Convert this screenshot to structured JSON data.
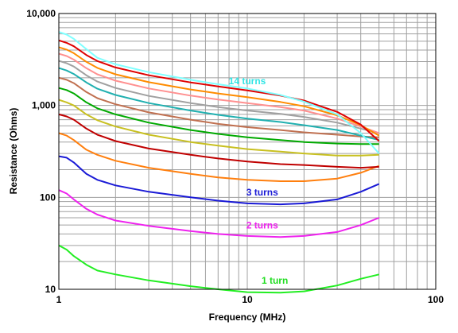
{
  "chart_data": {
    "type": "line",
    "title": "",
    "xlabel": "Frequency (MHz)",
    "ylabel": "Resistance (Ohms)",
    "x_scale": "log",
    "y_scale": "log",
    "xlim": [
      1,
      100
    ],
    "ylim": [
      10,
      10000
    ],
    "x_ticks": [
      "1",
      "10",
      "100"
    ],
    "y_ticks": [
      "10",
      "100",
      "1,000",
      "10,000"
    ],
    "grid": true,
    "legend": "none",
    "annotations": [
      {
        "text": "14 turns",
        "color": "#33e5e5",
        "x": 10,
        "y": 1700
      },
      {
        "text": "3 turns",
        "color": "#1a1ad6",
        "x": 12,
        "y": 105
      },
      {
        "text": "2 turns",
        "color": "#ee22ee",
        "x": 12,
        "y": 46
      },
      {
        "text": "1 turn",
        "color": "#22dd22",
        "x": 14,
        "y": 11.5
      }
    ],
    "x": [
      1,
      1.1,
      1.2,
      1.4,
      1.6,
      2,
      3,
      5,
      7,
      10,
      15,
      20,
      30,
      40,
      50
    ],
    "series": [
      {
        "color": "#22ee22",
        "values": [
          30,
          27,
          23,
          18.5,
          16,
          14.5,
          12.5,
          10.8,
          10,
          9.3,
          9.2,
          9.5,
          11,
          13,
          14.5
        ]
      },
      {
        "color": "#ee22ee",
        "values": [
          120,
          110,
          95,
          75,
          65,
          56,
          49,
          43,
          40,
          38,
          37,
          38,
          42,
          50,
          60
        ]
      },
      {
        "color": "#1a1ad6",
        "values": [
          280,
          270,
          240,
          180,
          155,
          135,
          115,
          100,
          92,
          86,
          84,
          86,
          95,
          115,
          140
        ]
      },
      {
        "color": "#ff7f0e",
        "values": [
          500,
          470,
          420,
          330,
          290,
          250,
          210,
          180,
          165,
          155,
          150,
          150,
          160,
          185,
          220
        ]
      },
      {
        "color": "#c00000",
        "values": [
          800,
          760,
          700,
          560,
          480,
          410,
          340,
          290,
          265,
          245,
          230,
          225,
          215,
          210,
          215
        ]
      },
      {
        "color": "#c8c020",
        "values": [
          1150,
          1080,
          1000,
          800,
          690,
          590,
          480,
          400,
          365,
          335,
          315,
          300,
          285,
          285,
          290
        ]
      },
      {
        "color": "#00aa00",
        "values": [
          1550,
          1470,
          1350,
          1080,
          930,
          800,
          650,
          540,
          490,
          450,
          420,
          400,
          385,
          380,
          380
        ]
      },
      {
        "color": "#c07050",
        "values": [
          2000,
          1900,
          1750,
          1400,
          1200,
          1030,
          840,
          700,
          630,
          580,
          540,
          510,
          480,
          460,
          450
        ]
      },
      {
        "color": "#20b0b0",
        "values": [
          2550,
          2400,
          2200,
          1780,
          1520,
          1300,
          1060,
          880,
          790,
          720,
          660,
          610,
          540,
          470,
          420
        ]
      },
      {
        "color": "#a0a0a0",
        "values": [
          3050,
          2880,
          2650,
          2130,
          1820,
          1550,
          1270,
          1060,
          960,
          880,
          810,
          750,
          650,
          560,
          500
        ]
      },
      {
        "color": "#ff9090",
        "values": [
          3650,
          3450,
          3150,
          2540,
          2180,
          1860,
          1530,
          1280,
          1160,
          1060,
          960,
          880,
          720,
          590,
          500
        ]
      },
      {
        "color": "#ff8c00",
        "values": [
          4300,
          4050,
          3700,
          2980,
          2560,
          2180,
          1790,
          1490,
          1350,
          1230,
          1090,
          980,
          780,
          610,
          470
        ]
      },
      {
        "color": "#e00000",
        "values": [
          5100,
          4800,
          4400,
          3540,
          3040,
          2590,
          2130,
          1780,
          1610,
          1460,
          1280,
          1130,
          850,
          620,
          410
        ]
      },
      {
        "color": "#80ffff",
        "values": [
          6300,
          5900,
          5300,
          4100,
          3300,
          2800,
          2300,
          1900,
          1700,
          1530,
          1300,
          1100,
          800,
          500,
          300
        ]
      }
    ]
  }
}
